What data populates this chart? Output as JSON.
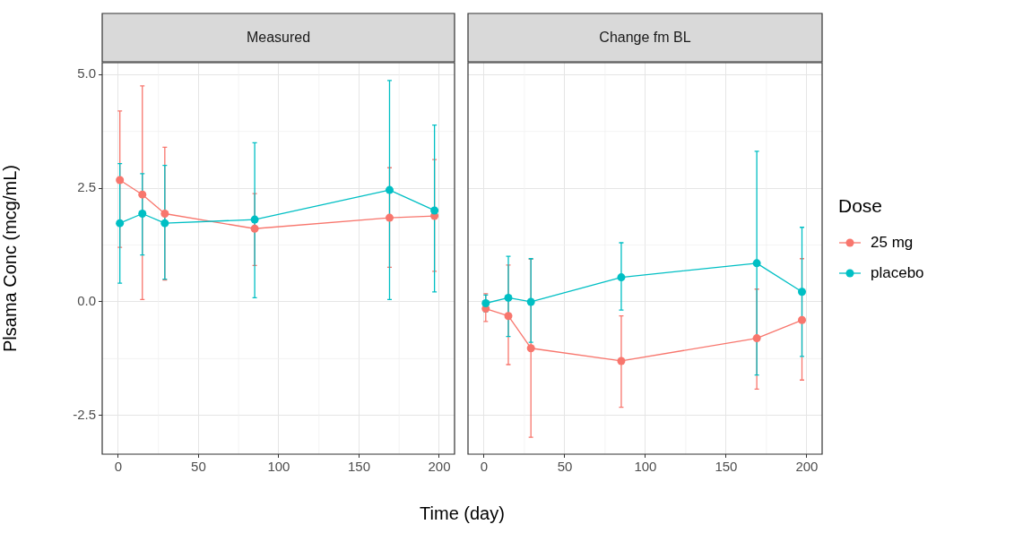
{
  "chart_data": [
    {
      "type": "line",
      "title": "Measured",
      "xlabel": "Time (day)",
      "ylabel": "Plsama Conc (mcg/mL)",
      "marker": "circle",
      "line_style": "solid",
      "grid": true,
      "legend": "right",
      "legend_title": "Dose",
      "xlim": [
        -10,
        209.5
      ],
      "xticks": [
        0,
        50,
        100,
        150,
        200
      ],
      "ylim": [
        -3.35,
        5.26
      ],
      "yticks": [
        {
          "value": -2.5,
          "label": "-2.5"
        },
        {
          "value": 0,
          "label": "0.0"
        },
        {
          "value": 2.5,
          "label": "2.5"
        },
        {
          "value": 5,
          "label": "5.0"
        }
      ],
      "series": [
        {
          "name": "25 mg",
          "color": "#f8766d",
          "x": [
            1,
            15,
            29,
            85,
            169,
            197
          ],
          "values": [
            2.68,
            2.36,
            1.94,
            1.61,
            1.85,
            1.89
          ],
          "errors": [
            [
              1.2,
              4.2
            ],
            [
              0.05,
              4.75
            ],
            [
              0.48,
              3.4
            ],
            [
              0.8,
              2.38
            ],
            [
              0.76,
              2.95
            ],
            [
              0.67,
              3.13
            ]
          ]
        },
        {
          "name": "placebo",
          "color": "#00bfc4",
          "x": [
            1,
            15,
            29,
            85,
            169,
            197
          ],
          "values": [
            1.73,
            1.94,
            1.73,
            1.81,
            2.46,
            2.01
          ],
          "errors": [
            [
              0.41,
              3.04
            ],
            [
              1.03,
              2.82
            ],
            [
              0.5,
              3.0
            ],
            [
              0.09,
              3.5
            ],
            [
              0.05,
              4.87
            ],
            [
              0.22,
              3.89
            ]
          ]
        }
      ]
    },
    {
      "type": "line",
      "title": "Change fm BL",
      "marker": "circle",
      "line_style": "solid",
      "grid": true,
      "tick_labels": "x",
      "xlim": [
        -10,
        209.5
      ],
      "xticks": [
        0,
        50,
        100,
        150,
        200
      ],
      "ylim": [
        -3.35,
        5.26
      ],
      "yticks": [
        {
          "value": -2.5,
          "label": null
        },
        {
          "value": 0,
          "label": null
        },
        {
          "value": 2.5,
          "label": null
        },
        {
          "value": 5,
          "label": null
        }
      ],
      "series": [
        {
          "color": "#f8766d",
          "x": [
            1,
            15,
            29,
            85,
            169,
            197
          ],
          "values": [
            -0.15,
            -0.31,
            -1.02,
            -1.3,
            -0.8,
            -0.4
          ],
          "errors": [
            [
              -0.43,
              0.18
            ],
            [
              -1.38,
              0.81
            ],
            [
              -2.98,
              0.94
            ],
            [
              -2.32,
              -0.31
            ],
            [
              -1.92,
              0.28
            ],
            [
              -1.72,
              0.95
            ]
          ]
        },
        {
          "color": "#00bfc4",
          "x": [
            1,
            15,
            29,
            85,
            169,
            197
          ],
          "values": [
            -0.03,
            0.09,
            0.0,
            0.54,
            0.85,
            0.22
          ],
          "errors": [
            [
              -0.22,
              0.15
            ],
            [
              -0.76,
              1.0
            ],
            [
              -0.89,
              0.95
            ],
            [
              -0.18,
              1.3
            ],
            [
              -1.61,
              3.31
            ],
            [
              -1.2,
              1.64
            ]
          ]
        }
      ]
    }
  ]
}
